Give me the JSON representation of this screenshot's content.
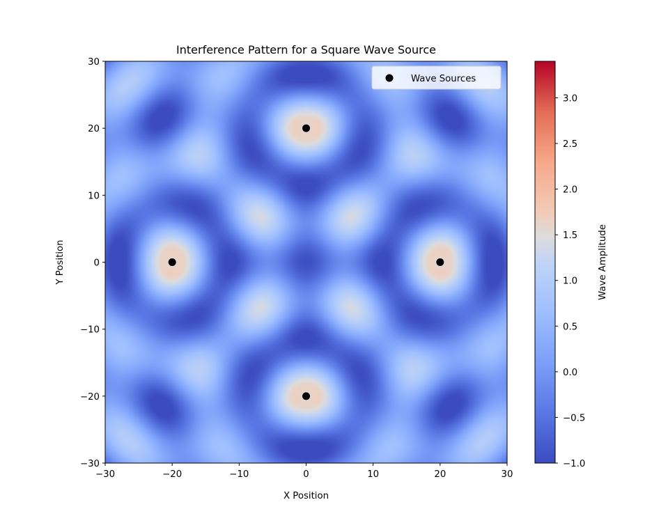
{
  "chart_data": {
    "type": "heatmap",
    "title": "Interference Pattern for a Square Wave Source",
    "xlabel": "X Position",
    "ylabel": "Y Position",
    "xlim": [
      -30,
      30
    ],
    "ylim": [
      -30,
      30
    ],
    "xticks": [
      -30,
      -20,
      -10,
      0,
      10,
      20,
      30
    ],
    "yticks": [
      -30,
      -20,
      -10,
      0,
      10,
      20,
      30
    ],
    "xtick_labels": [
      "−30",
      "−20",
      "−10",
      "0",
      "10",
      "20",
      "30"
    ],
    "ytick_labels": [
      "−30",
      "−20",
      "−10",
      "0",
      "10",
      "20",
      "30"
    ],
    "colormap": "coolwarm",
    "grid": false,
    "legend": {
      "placement": "top-right",
      "entries": [
        "Wave Sources"
      ]
    },
    "colorbar": {
      "label": "Wave Amplitude",
      "range": [
        -1.0,
        3.4
      ],
      "ticks": [
        -1.0,
        -0.5,
        0.0,
        0.5,
        1.0,
        1.5,
        2.0,
        2.5,
        3.0
      ],
      "tick_labels": [
        "−1.0",
        "−0.5",
        "0.0",
        "0.5",
        "1.0",
        "1.5",
        "2.0",
        "2.5",
        "3.0"
      ]
    },
    "series": [
      {
        "name": "Wave Sources",
        "type": "scatter",
        "color": "#000000",
        "points": [
          [
            0,
            20
          ],
          [
            0,
            -20
          ],
          [
            20,
            0
          ],
          [
            -20,
            0
          ]
        ]
      }
    ]
  }
}
